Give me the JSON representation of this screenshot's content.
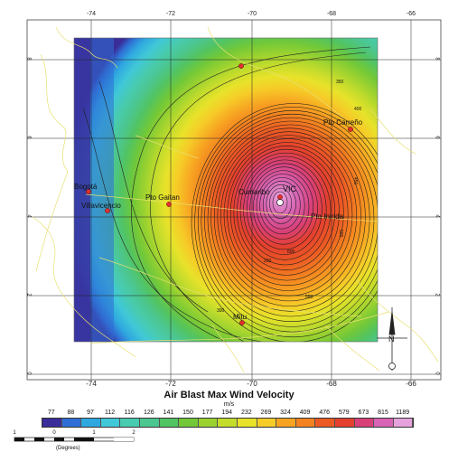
{
  "map": {
    "title": "Air Blast Max Wind Velocity",
    "units": "m/s",
    "longitude_ticks": [
      "-74",
      "-72",
      "-70",
      "-68",
      "-66"
    ],
    "latitude_ticks": [
      "8",
      "6",
      "4",
      "2",
      "0"
    ],
    "legend": {
      "values": [
        "77",
        "88",
        "97",
        "112",
        "116",
        "126",
        "141",
        "150",
        "177",
        "194",
        "232",
        "269",
        "324",
        "409",
        "476",
        "579",
        "673",
        "815",
        "1189"
      ],
      "colors": [
        "#3a2d9a",
        "#2f6ed4",
        "#2fa8e0",
        "#40c8d8",
        "#48cbb0",
        "#4cc690",
        "#52c462",
        "#72c838",
        "#9bd230",
        "#c4dc2c",
        "#e8e22a",
        "#f6cc28",
        "#f7a422",
        "#f38220",
        "#ec5a24",
        "#e4402e",
        "#d8407a",
        "#d864b4",
        "#e6a2dc"
      ]
    },
    "scale_bar": {
      "labels": [
        "1",
        "0",
        "1",
        "2"
      ],
      "unit_label": "(Degrees)"
    },
    "cities": [
      {
        "name": "Bogotá"
      },
      {
        "name": "Villavicencio"
      },
      {
        "name": "Pto Gaitan"
      },
      {
        "name": "Cumaribo"
      },
      {
        "name": "VIC"
      },
      {
        "name": "Pto Carreño"
      },
      {
        "name": "Pto Inirida"
      },
      {
        "name": "Mitu"
      }
    ],
    "contour_labels": [
      "350",
      "400",
      "450",
      "500",
      "550",
      "600",
      "300",
      "250"
    ],
    "north_arrow": {
      "label": "N"
    }
  }
}
